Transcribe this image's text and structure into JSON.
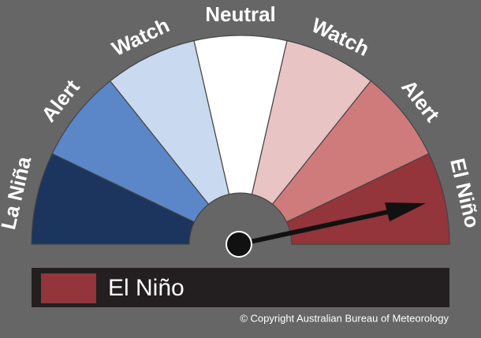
{
  "gauge": {
    "segments": [
      {
        "label": "La Niña",
        "color": "#1c355e"
      },
      {
        "label": "Alert",
        "color": "#5b87c8"
      },
      {
        "label": "Watch",
        "color": "#c9d9ef"
      },
      {
        "label": "Neutral",
        "color": "#ffffff"
      },
      {
        "label": "Watch",
        "color": "#e9c4c4"
      },
      {
        "label": "Alert",
        "color": "#cf7b7b"
      },
      {
        "label": "El Niño",
        "color": "#94343b"
      }
    ]
  },
  "legend": {
    "label": "El Niño",
    "color": "#94343b"
  },
  "copyright": "© Copyright Australian Bureau of Meteorology"
}
